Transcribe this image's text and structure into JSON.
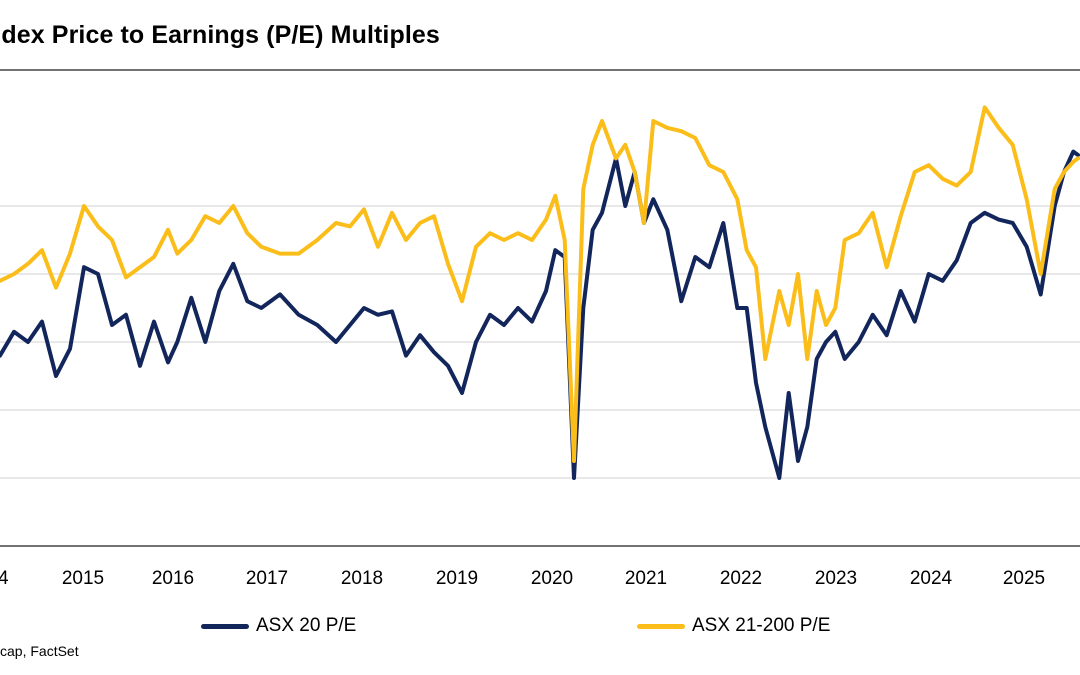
{
  "chart_data": {
    "type": "line",
    "title": "ndex Price to Earnings (P/E) Multiples",
    "xlabel": "",
    "ylabel": "",
    "x_ticks": [
      "4",
      "2015",
      "2016",
      "2017",
      "2018",
      "2019",
      "2020",
      "2021",
      "2022",
      "2023",
      "2024",
      "2025"
    ],
    "xlim": [
      2014.1,
      2025.65
    ],
    "gridlines": 5,
    "grid": true,
    "legend": "bottom",
    "series": [
      {
        "name": "ASX 20 P/E",
        "color": "#13265c",
        "points": [
          [
            2014.1,
            11.6
          ],
          [
            2014.25,
            12.3
          ],
          [
            2014.4,
            12.0
          ],
          [
            2014.55,
            12.6
          ],
          [
            2014.7,
            11.0
          ],
          [
            2014.85,
            11.8
          ],
          [
            2015.0,
            14.2
          ],
          [
            2015.15,
            14.0
          ],
          [
            2015.3,
            12.5
          ],
          [
            2015.45,
            12.8
          ],
          [
            2015.6,
            11.3
          ],
          [
            2015.75,
            12.6
          ],
          [
            2015.9,
            11.4
          ],
          [
            2016.0,
            12.0
          ],
          [
            2016.15,
            13.3
          ],
          [
            2016.3,
            12.0
          ],
          [
            2016.45,
            13.5
          ],
          [
            2016.6,
            14.3
          ],
          [
            2016.75,
            13.2
          ],
          [
            2016.9,
            13.0
          ],
          [
            2017.1,
            13.4
          ],
          [
            2017.3,
            12.8
          ],
          [
            2017.5,
            12.5
          ],
          [
            2017.7,
            12.0
          ],
          [
            2017.85,
            12.5
          ],
          [
            2018.0,
            13.0
          ],
          [
            2018.15,
            12.8
          ],
          [
            2018.3,
            12.9
          ],
          [
            2018.45,
            11.6
          ],
          [
            2018.6,
            12.2
          ],
          [
            2018.75,
            11.7
          ],
          [
            2018.9,
            11.3
          ],
          [
            2019.05,
            10.5
          ],
          [
            2019.2,
            12.0
          ],
          [
            2019.35,
            12.8
          ],
          [
            2019.5,
            12.5
          ],
          [
            2019.65,
            13.0
          ],
          [
            2019.8,
            12.6
          ],
          [
            2019.95,
            13.5
          ],
          [
            2020.05,
            14.7
          ],
          [
            2020.15,
            14.5
          ],
          [
            2020.25,
            8.0
          ],
          [
            2020.35,
            13.0
          ],
          [
            2020.45,
            15.3
          ],
          [
            2020.55,
            15.8
          ],
          [
            2020.7,
            17.4
          ],
          [
            2020.8,
            16.0
          ],
          [
            2020.9,
            17.0
          ],
          [
            2021.0,
            15.5
          ],
          [
            2021.1,
            16.2
          ],
          [
            2021.25,
            15.3
          ],
          [
            2021.4,
            13.2
          ],
          [
            2021.55,
            14.5
          ],
          [
            2021.7,
            14.2
          ],
          [
            2021.85,
            15.5
          ],
          [
            2022.0,
            13.0
          ],
          [
            2022.1,
            13.0
          ],
          [
            2022.2,
            10.8
          ],
          [
            2022.3,
            9.5
          ],
          [
            2022.45,
            8.0
          ],
          [
            2022.55,
            10.5
          ],
          [
            2022.65,
            8.5
          ],
          [
            2022.75,
            9.5
          ],
          [
            2022.85,
            11.5
          ],
          [
            2022.95,
            12.0
          ],
          [
            2023.05,
            12.3
          ],
          [
            2023.15,
            11.5
          ],
          [
            2023.3,
            12.0
          ],
          [
            2023.45,
            12.8
          ],
          [
            2023.6,
            12.2
          ],
          [
            2023.75,
            13.5
          ],
          [
            2023.9,
            12.6
          ],
          [
            2024.05,
            14.0
          ],
          [
            2024.2,
            13.8
          ],
          [
            2024.35,
            14.4
          ],
          [
            2024.5,
            15.5
          ],
          [
            2024.65,
            15.8
          ],
          [
            2024.8,
            15.6
          ],
          [
            2024.95,
            15.5
          ],
          [
            2025.1,
            14.8
          ],
          [
            2025.25,
            13.4
          ],
          [
            2025.4,
            16.0
          ],
          [
            2025.5,
            17.0
          ],
          [
            2025.6,
            17.6
          ],
          [
            2025.65,
            17.5
          ]
        ]
      },
      {
        "name": "ASX 21-200 P/E",
        "color": "#fbbd19",
        "points": [
          [
            2014.1,
            13.8
          ],
          [
            2014.25,
            14.0
          ],
          [
            2014.4,
            14.3
          ],
          [
            2014.55,
            14.7
          ],
          [
            2014.7,
            13.6
          ],
          [
            2014.85,
            14.6
          ],
          [
            2015.0,
            16.0
          ],
          [
            2015.15,
            15.4
          ],
          [
            2015.3,
            15.0
          ],
          [
            2015.45,
            13.9
          ],
          [
            2015.6,
            14.2
          ],
          [
            2015.75,
            14.5
          ],
          [
            2015.9,
            15.3
          ],
          [
            2016.0,
            14.6
          ],
          [
            2016.15,
            15.0
          ],
          [
            2016.3,
            15.7
          ],
          [
            2016.45,
            15.5
          ],
          [
            2016.6,
            16.0
          ],
          [
            2016.75,
            15.2
          ],
          [
            2016.9,
            14.8
          ],
          [
            2017.1,
            14.6
          ],
          [
            2017.3,
            14.6
          ],
          [
            2017.5,
            15.0
          ],
          [
            2017.7,
            15.5
          ],
          [
            2017.85,
            15.4
          ],
          [
            2018.0,
            15.9
          ],
          [
            2018.15,
            14.8
          ],
          [
            2018.3,
            15.8
          ],
          [
            2018.45,
            15.0
          ],
          [
            2018.6,
            15.5
          ],
          [
            2018.75,
            15.7
          ],
          [
            2018.9,
            14.3
          ],
          [
            2019.05,
            13.2
          ],
          [
            2019.2,
            14.8
          ],
          [
            2019.35,
            15.2
          ],
          [
            2019.5,
            15.0
          ],
          [
            2019.65,
            15.2
          ],
          [
            2019.8,
            15.0
          ],
          [
            2019.95,
            15.6
          ],
          [
            2020.05,
            16.3
          ],
          [
            2020.15,
            15.0
          ],
          [
            2020.25,
            8.5
          ],
          [
            2020.35,
            16.5
          ],
          [
            2020.45,
            17.8
          ],
          [
            2020.55,
            18.5
          ],
          [
            2020.7,
            17.4
          ],
          [
            2020.8,
            17.8
          ],
          [
            2020.9,
            17.0
          ],
          [
            2021.0,
            15.5
          ],
          [
            2021.1,
            18.5
          ],
          [
            2021.25,
            18.3
          ],
          [
            2021.4,
            18.2
          ],
          [
            2021.55,
            18.0
          ],
          [
            2021.7,
            17.2
          ],
          [
            2021.85,
            17.0
          ],
          [
            2022.0,
            16.2
          ],
          [
            2022.1,
            14.7
          ],
          [
            2022.2,
            14.2
          ],
          [
            2022.3,
            11.5
          ],
          [
            2022.45,
            13.5
          ],
          [
            2022.55,
            12.5
          ],
          [
            2022.65,
            14.0
          ],
          [
            2022.75,
            11.5
          ],
          [
            2022.85,
            13.5
          ],
          [
            2022.95,
            12.5
          ],
          [
            2023.05,
            13.0
          ],
          [
            2023.15,
            15.0
          ],
          [
            2023.3,
            15.2
          ],
          [
            2023.45,
            15.8
          ],
          [
            2023.6,
            14.2
          ],
          [
            2023.75,
            15.7
          ],
          [
            2023.9,
            17.0
          ],
          [
            2024.05,
            17.2
          ],
          [
            2024.2,
            16.8
          ],
          [
            2024.35,
            16.6
          ],
          [
            2024.5,
            17.0
          ],
          [
            2024.65,
            18.9
          ],
          [
            2024.8,
            18.3
          ],
          [
            2024.95,
            17.8
          ],
          [
            2025.1,
            16.2
          ],
          [
            2025.25,
            14.0
          ],
          [
            2025.4,
            16.5
          ],
          [
            2025.5,
            17.0
          ],
          [
            2025.6,
            17.3
          ],
          [
            2025.65,
            17.4
          ]
        ]
      }
    ]
  },
  "source_text": "cap, FactSet"
}
